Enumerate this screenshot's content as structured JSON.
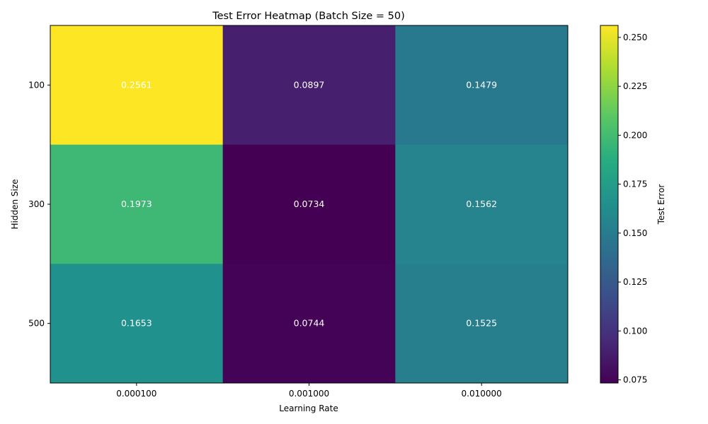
{
  "chart_data": {
    "type": "heatmap",
    "title": "Test Error Heatmap (Batch Size = 50)",
    "xlabel": "Learning Rate",
    "ylabel": "Hidden Size",
    "x_categories": [
      "0.000100",
      "0.001000",
      "0.010000"
    ],
    "y_categories": [
      "100",
      "300",
      "500"
    ],
    "values": [
      [
        0.2561,
        0.0897,
        0.1479
      ],
      [
        0.1973,
        0.0734,
        0.1562
      ],
      [
        0.1653,
        0.0744,
        0.1525
      ]
    ],
    "value_labels": [
      [
        "0.2561",
        "0.0897",
        "0.1479"
      ],
      [
        "0.1973",
        "0.0734",
        "0.1562"
      ],
      [
        "0.1653",
        "0.0744",
        "0.1525"
      ]
    ],
    "colormap": "viridis",
    "colorbar": {
      "label": "Test Error",
      "vmin": 0.0734,
      "vmax": 0.2561,
      "ticks": [
        0.075,
        0.1,
        0.125,
        0.15,
        0.175,
        0.2,
        0.225,
        0.25
      ],
      "tick_labels": [
        "0.075",
        "0.100",
        "0.125",
        "0.150",
        "0.175",
        "0.200",
        "0.225",
        "0.250"
      ]
    },
    "grid": false
  }
}
